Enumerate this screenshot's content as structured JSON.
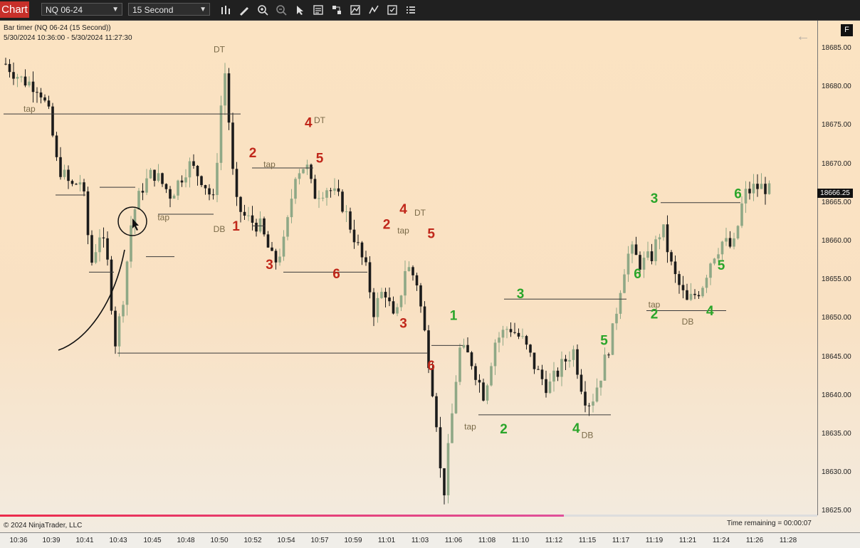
{
  "toolbar": {
    "chart_tab": "Chart",
    "instrument": "NQ 06-24",
    "interval": "15 Second",
    "icons": [
      "bar-chart-icon",
      "draw-pencil-icon",
      "zoom-in-icon",
      "zoom-out-icon",
      "pointer-icon",
      "data-box-icon",
      "strategies-icon",
      "indicators-icon",
      "trade-icon",
      "properties-icon",
      "list-icon"
    ]
  },
  "chart_info": {
    "line1": "Bar timer (NQ 06-24 (15 Second))",
    "line2": "5/30/2024 10:36:00 - 5/30/2024 11:27:30"
  },
  "f_button": "F",
  "price_axis": {
    "ticks": [
      "18685.00",
      "18680.00",
      "18675.00",
      "18670.00",
      "18665.00",
      "18660.00",
      "18655.00",
      "18650.00",
      "18645.00",
      "18640.00",
      "18635.00",
      "18630.00",
      "18625.00"
    ],
    "last_price": "18666.25"
  },
  "time_axis": [
    "10:36",
    "10:39",
    "10:41",
    "10:43",
    "10:45",
    "10:48",
    "10:50",
    "10:52",
    "10:54",
    "10:57",
    "10:59",
    "11:01",
    "11:03",
    "11:06",
    "11:08",
    "11:10",
    "11:12",
    "11:15",
    "11:17",
    "11:19",
    "11:21",
    "11:24",
    "11:26",
    "11:28"
  ],
  "footer": {
    "copyright": "© 2024 NinjaTrader, LLC",
    "time_remaining": "Time remaining = 00:00:07",
    "progress": 0.69
  },
  "colors": {
    "red_count": "#c0271a",
    "green_count": "#2aa52a",
    "annotation": "#7a6a48",
    "up_candle": "#8fa886",
    "down_candle": "#1b1b1b"
  },
  "annotations": [
    {
      "text": "tap",
      "x": "10:37",
      "price": 18676.8
    },
    {
      "text": "DT",
      "x": "10:50",
      "price": 18684.5
    },
    {
      "text": "tap",
      "x": "10:46",
      "price": 18662.7
    },
    {
      "text": "DB",
      "x": "10:50",
      "price": 18661.2
    },
    {
      "text": "DT",
      "x": "10:57",
      "price": 18675.3
    },
    {
      "text": "tap",
      "x": "10:53",
      "price": 18669.6
    },
    {
      "text": "DT",
      "x": "11:03",
      "price": 18663.3
    },
    {
      "text": "tap",
      "x": "11:02",
      "price": 18661.0
    },
    {
      "text": "tap",
      "x": "11:07",
      "price": 18635.6
    },
    {
      "text": "DB",
      "x": "11:15",
      "price": 18634.5
    },
    {
      "text": "tap",
      "x": "11:19",
      "price": 18651.4
    },
    {
      "text": "DB",
      "x": "11:21",
      "price": 18649.2
    }
  ],
  "counts": [
    {
      "n": "1",
      "color": "red",
      "x": "10:51",
      "price": 18661.4
    },
    {
      "n": "2",
      "color": "red",
      "x": "10:52",
      "price": 18670.9
    },
    {
      "text": "",
      "n": "3",
      "color": "red",
      "x": "10:53",
      "price": 18656.4
    },
    {
      "n": "4",
      "color": "red",
      "x": "10:56",
      "price": 18674.8
    },
    {
      "n": "5",
      "color": "red",
      "x": "10:57",
      "price": 18670.2
    },
    {
      "n": "6",
      "color": "red",
      "x": "10:58",
      "price": 18655.2
    },
    {
      "n": "2",
      "color": "red",
      "x": "11:01",
      "price": 18661.6
    },
    {
      "n": "4",
      "color": "red",
      "x": "11:02",
      "price": 18663.6
    },
    {
      "n": "5",
      "color": "red",
      "x": "11:04",
      "price": 18660.4
    },
    {
      "n": "3",
      "color": "red",
      "x": "11:02",
      "price": 18648.8
    },
    {
      "n": "6",
      "color": "red",
      "x": "11:04",
      "price": 18643.3
    },
    {
      "n": "1",
      "color": "green",
      "x": "11:06",
      "price": 18649.8
    },
    {
      "n": "2",
      "color": "green",
      "x": "11:09",
      "price": 18635.1
    },
    {
      "n": "3",
      "color": "green",
      "x": "11:10",
      "price": 18652.6
    },
    {
      "n": "4",
      "color": "green",
      "x": "11:14",
      "price": 18635.2
    },
    {
      "n": "5",
      "color": "green",
      "x": "11:16",
      "price": 18646.6
    },
    {
      "n": "6",
      "color": "green",
      "x": "11:18",
      "price": 18655.2
    },
    {
      "n": "2",
      "color": "green",
      "x": "11:19",
      "price": 18650.0
    },
    {
      "n": "3",
      "color": "green",
      "x": "11:19",
      "price": 18665.0
    },
    {
      "n": "4",
      "color": "green",
      "x": "11:23",
      "price": 18650.4
    },
    {
      "n": "5",
      "color": "green",
      "x": "11:24",
      "price": 18656.3
    },
    {
      "n": "6",
      "color": "green",
      "x": "11:25",
      "price": 18665.6
    }
  ]
}
